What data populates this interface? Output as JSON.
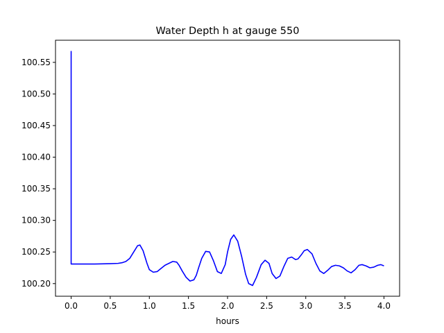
{
  "chart_data": {
    "type": "line",
    "title": "Water Depth h at gauge 550",
    "xlabel": "hours",
    "ylabel": "",
    "xlim": [
      -0.2,
      4.2
    ],
    "ylim": [
      100.18,
      100.585
    ],
    "xticks": [
      "0.0",
      "0.5",
      "1.0",
      "1.5",
      "2.0",
      "2.5",
      "3.0",
      "3.5",
      "4.0"
    ],
    "xtick_values": [
      0.0,
      0.5,
      1.0,
      1.5,
      2.0,
      2.5,
      3.0,
      3.5,
      4.0
    ],
    "yticks": [
      "100.20",
      "100.25",
      "100.30",
      "100.35",
      "100.40",
      "100.45",
      "100.50",
      "100.55"
    ],
    "ytick_values": [
      100.2,
      100.25,
      100.3,
      100.35,
      100.4,
      100.45,
      100.5,
      100.55
    ],
    "grid": false,
    "series": [
      {
        "color": "#0000ff",
        "x": [
          0.0,
          0.0,
          0.005,
          0.1,
          0.2,
          0.3,
          0.4,
          0.5,
          0.6,
          0.65,
          0.7,
          0.75,
          0.8,
          0.85,
          0.88,
          0.92,
          0.97,
          1.0,
          1.05,
          1.1,
          1.15,
          1.2,
          1.3,
          1.35,
          1.38,
          1.42,
          1.47,
          1.52,
          1.57,
          1.6,
          1.63,
          1.67,
          1.72,
          1.77,
          1.82,
          1.87,
          1.92,
          1.97,
          2.0,
          2.04,
          2.08,
          2.13,
          2.18,
          2.23,
          2.27,
          2.32,
          2.37,
          2.43,
          2.48,
          2.53,
          2.57,
          2.62,
          2.67,
          2.72,
          2.77,
          2.82,
          2.87,
          2.9,
          2.94,
          2.98,
          3.02,
          3.08,
          3.13,
          3.18,
          3.23,
          3.28,
          3.33,
          3.38,
          3.43,
          3.48,
          3.53,
          3.58,
          3.63,
          3.68,
          3.72,
          3.77,
          3.82,
          3.87,
          3.92,
          3.96,
          4.0
        ],
        "values": [
          100.568,
          100.231,
          100.231,
          100.231,
          100.231,
          100.231,
          100.2312,
          100.2315,
          100.232,
          100.233,
          100.235,
          100.24,
          100.25,
          100.26,
          100.261,
          100.252,
          100.232,
          100.222,
          100.218,
          100.219,
          100.224,
          100.229,
          100.235,
          100.234,
          100.229,
          100.22,
          100.21,
          100.204,
          100.206,
          100.213,
          100.225,
          100.24,
          100.251,
          100.25,
          100.236,
          100.219,
          100.216,
          100.23,
          100.25,
          100.27,
          100.277,
          100.267,
          100.243,
          100.215,
          100.2,
          100.197,
          100.21,
          100.23,
          100.237,
          100.232,
          100.216,
          100.208,
          100.212,
          100.227,
          100.24,
          100.242,
          100.238,
          100.239,
          100.245,
          100.252,
          100.254,
          100.247,
          100.232,
          100.22,
          100.216,
          100.221,
          100.227,
          100.229,
          100.228,
          100.225,
          100.22,
          100.217,
          100.222,
          100.229,
          100.23,
          100.228,
          100.225,
          100.226,
          100.229,
          100.23,
          100.228
        ]
      }
    ]
  }
}
